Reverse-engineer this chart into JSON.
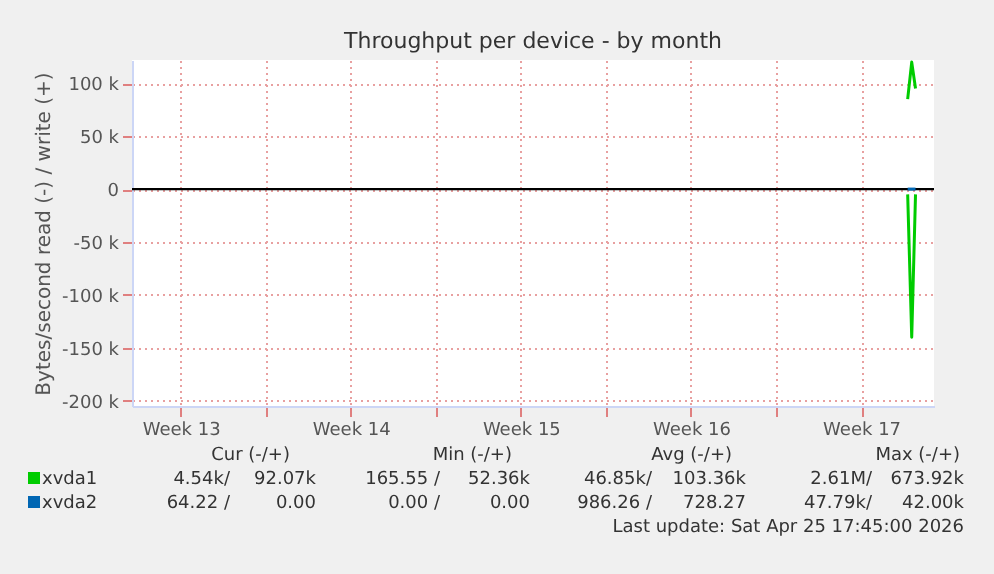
{
  "chart_data": {
    "type": "line",
    "title": "Throughput per device - by month",
    "ylabel": "Bytes/second read (-) / write (+)",
    "x": [
      "2026-04-25T10:00",
      "2026-04-25T14:00",
      "2026-04-25T17:45"
    ],
    "series": [
      {
        "name": "xvda1",
        "color": "#00cc00",
        "values": [
          85000,
          120000,
          95000
        ]
      },
      {
        "color": "#00cc00",
        "values": [
          -5000,
          -140000,
          -5000
        ]
      },
      {
        "name": "xvda2",
        "color": "#0066b3",
        "values": [
          0,
          0,
          0
        ]
      }
    ],
    "xlim": [
      "2026-03-24T12:00",
      "2026-04-26T12:00"
    ],
    "xticks": [
      {
        "value": "2026-03-26T12:00",
        "label": "Week 13"
      },
      {
        "value": "2026-03-30T00:00",
        "label": null
      },
      {
        "value": "2026-04-02T12:00",
        "label": "Week 14"
      },
      {
        "value": "2026-04-06T00:00",
        "label": null
      },
      {
        "value": "2026-04-09T12:00",
        "label": "Week 15"
      },
      {
        "value": "2026-04-13T00:00",
        "label": null
      },
      {
        "value": "2026-04-16T12:00",
        "label": "Week 16"
      },
      {
        "value": "2026-04-20T00:00",
        "label": null
      },
      {
        "value": "2026-04-23T12:00",
        "label": "Week 17"
      }
    ],
    "ylim": [
      -205000,
      122000
    ],
    "yticks": [
      {
        "value": -200000,
        "label": "-200 k"
      },
      {
        "value": -150000,
        "label": "-150 k"
      },
      {
        "value": -100000,
        "label": "-100 k"
      },
      {
        "value": -50000,
        "label": "-50 k"
      },
      0,
      {
        "value": 50000,
        "label": "50 k"
      },
      {
        "value": 100000,
        "label": "100 k"
      }
    ],
    "ref_lines": [
      {
        "axis": "y",
        "value": 0,
        "color": "#000000"
      }
    ],
    "grid": true,
    "legend": "bottom",
    "annotations": [
      "Cur (-/+)",
      "Min (-/+)",
      "Avg (-/+)",
      "Max (-/+)",
      "4.54k/",
      "92.07k",
      "165.55 /",
      "52.36k",
      "46.85k/",
      "103.36k",
      "2.61M/",
      "673.92k",
      "64.22 /",
      "0.00",
      "0.00 /",
      "0.00",
      "986.26 /",
      "728.27",
      "47.79k/",
      "42.00k",
      "Last update: Sat Apr 25 17:45:00 2026"
    ]
  }
}
